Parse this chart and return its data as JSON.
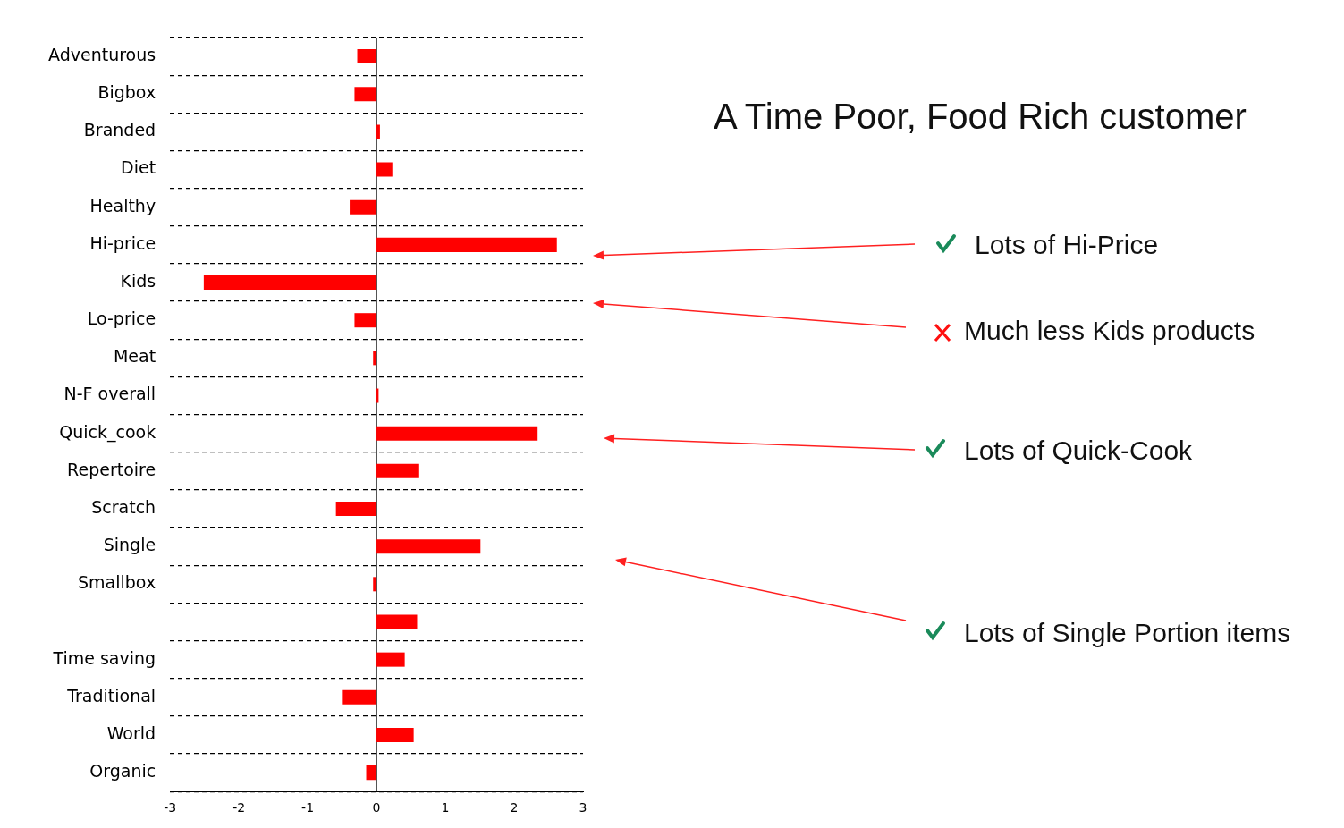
{
  "chart_data": {
    "type": "bar",
    "orientation": "horizontal",
    "title": "A Time Poor, Food Rich customer",
    "categories": [
      "Adventurous",
      "Bigbox",
      "Branded",
      "Diet",
      "Healthy",
      "Hi-price",
      "Kids",
      "Lo-price",
      "Meat",
      "N-F overall",
      "Quick_cook",
      "Repertoire",
      "Scratch",
      "Single",
      "Smallbox",
      null,
      "Time saving",
      "Traditional",
      "World",
      "Organic"
    ],
    "values": [
      -0.28,
      -0.32,
      0.05,
      0.23,
      -0.39,
      2.62,
      -2.51,
      -0.32,
      -0.05,
      0.03,
      2.34,
      0.62,
      -0.59,
      1.51,
      -0.05,
      0.59,
      0.41,
      -0.49,
      0.54,
      -0.15
    ],
    "color": "#ff0000",
    "xlim": [
      -3,
      3
    ],
    "xticks": [
      -3,
      -2,
      -1,
      0,
      1,
      2,
      3
    ],
    "grid": "y",
    "line_style": "dashed",
    "legend": false,
    "annotations": [
      "Lots of Hi-Price",
      "Much less Kids products",
      "Lots of Quick-Cook",
      "Lots of Single Portion items"
    ]
  }
}
